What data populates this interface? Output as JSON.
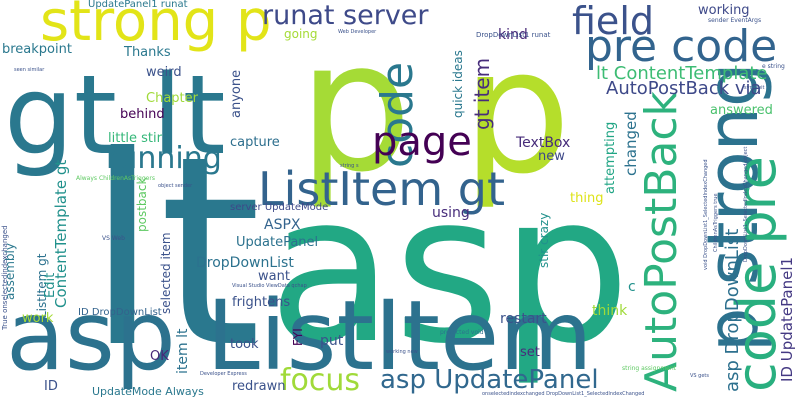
{
  "words": [
    {
      "text": "asp",
      "color": "#22a884"
    },
    {
      "text": "lt",
      "color": "#2a788e"
    },
    {
      "text": "p",
      "color": "#a5db36"
    },
    {
      "text": "p",
      "color": "#b5de2b"
    },
    {
      "text": "gt lt",
      "color": "#2a788e"
    },
    {
      "text": "asp ListItem",
      "color": "#2c728e"
    },
    {
      "text": "strong p",
      "color": "#e2e418"
    },
    {
      "text": "ListItem gt",
      "color": "#33638d"
    },
    {
      "text": "pre code",
      "color": "#32648e"
    },
    {
      "text": "p strong",
      "color": "#2c728e"
    },
    {
      "text": "code pre",
      "color": "#29af7f"
    },
    {
      "text": "AutoPostBack",
      "color": "#2db27d"
    },
    {
      "text": "code",
      "color": "#2a788e"
    },
    {
      "text": "page",
      "color": "#440154"
    },
    {
      "text": "field",
      "color": "#3b528b"
    },
    {
      "text": "running",
      "color": "#2a788e"
    },
    {
      "text": "runat server",
      "color": "#3e4a89"
    },
    {
      "text": "focus",
      "color": "#a0da39"
    },
    {
      "text": "asp UpdatePanel",
      "color": "#31688e"
    },
    {
      "text": "asp DropDownList",
      "color": "#2d708e"
    },
    {
      "text": "ID UpdatePanel1",
      "color": "#443983"
    },
    {
      "text": "AutoPostBack via",
      "color": "#3e4989"
    },
    {
      "text": "lt ContentTemplate",
      "color": "#3dbc74"
    },
    {
      "text": "gt item",
      "color": "#472d7b"
    },
    {
      "text": "kind",
      "color": "#482878"
    },
    {
      "text": "working",
      "color": "#3e4989"
    },
    {
      "text": "TextBox",
      "color": "#472c7a"
    },
    {
      "text": "answered",
      "color": "#4ac16d"
    },
    {
      "text": "ListItem gt",
      "color": "#2c728e"
    },
    {
      "text": "ContentTemplate gt",
      "color": "#21918c"
    },
    {
      "text": "breakpoint",
      "color": "#2a788e"
    },
    {
      "text": "Thanks",
      "color": "#2a788e"
    },
    {
      "text": "weird",
      "color": "#3b528b"
    },
    {
      "text": "Chapter",
      "color": "#a0da39"
    },
    {
      "text": "behind",
      "color": "#440154"
    },
    {
      "text": "little stir",
      "color": "#35b779"
    },
    {
      "text": "capture",
      "color": "#2e6f8e"
    },
    {
      "text": "anyone",
      "color": "#3b528b"
    },
    {
      "text": "going",
      "color": "#a5db36"
    },
    {
      "text": "quick ideas",
      "color": "#2a788e"
    },
    {
      "text": "changed",
      "color": "#2c728e"
    },
    {
      "text": "attempting",
      "color": "#21a585"
    },
    {
      "text": "new",
      "color": "#3e4989"
    },
    {
      "text": "thing",
      "color": "#dde318"
    },
    {
      "text": "using",
      "color": "#472d7b"
    },
    {
      "text": "ASPX",
      "color": "#33638d"
    },
    {
      "text": "UpdatePanel",
      "color": "#2c728e"
    },
    {
      "text": "DropDownList",
      "color": "#2c728e"
    },
    {
      "text": "want",
      "color": "#3b528b"
    },
    {
      "text": "frightens",
      "color": "#3b528b"
    },
    {
      "text": "selected item",
      "color": "#3b528b"
    },
    {
      "text": "postback",
      "color": "#5ec962"
    },
    {
      "text": "Edit",
      "color": "#21918c"
    },
    {
      "text": "assembly",
      "color": "#2a788e"
    },
    {
      "text": "work",
      "color": "#a5db36"
    },
    {
      "text": "ID DropDownList",
      "color": "#33638d"
    },
    {
      "text": "item lt",
      "color": "#2c728e"
    },
    {
      "text": "took",
      "color": "#3b528b"
    },
    {
      "text": "OK",
      "color": "#482878"
    },
    {
      "text": "FYI",
      "color": "#440154"
    },
    {
      "text": "put",
      "color": "#3b528b"
    },
    {
      "text": "restart",
      "color": "#3b528b"
    },
    {
      "text": "set",
      "color": "#472d7b"
    },
    {
      "text": "think",
      "color": "#a0da39"
    },
    {
      "text": "c",
      "color": "#21918c"
    },
    {
      "text": "stir crazy",
      "color": "#21918c"
    },
    {
      "text": "ID",
      "color": "#3b528b"
    },
    {
      "text": "UpdateMode Always",
      "color": "#2a788e"
    },
    {
      "text": "redrawn",
      "color": "#3b528b"
    },
    {
      "text": "server UpdateMode",
      "color": "#3e4989"
    },
    {
      "text": "UpdatePanel1 runat",
      "color": "#2a788e"
    },
    {
      "text": "DropDownList1 runat",
      "color": "#3b528b"
    },
    {
      "text": "Web Developer",
      "color": "#3b528b"
    },
    {
      "text": "Visual Studio ViewData qchap",
      "color": "#3b528b"
    },
    {
      "text": "Developer Express",
      "color": "#3b528b"
    },
    {
      "text": "Always ChildrenAsTriggers",
      "color": "#5ec962"
    },
    {
      "text": "True onselectedindexchanged",
      "color": "#3b528b"
    },
    {
      "text": "onselectedindexchanged DropDownList1_SelectedIndexChanged",
      "color": "#3b528b"
    },
    {
      "text": "protected void",
      "color": "#2c728e"
    },
    {
      "text": "object sender",
      "color": "#3b528b"
    },
    {
      "text": "sender EventArgs",
      "color": "#3b528b"
    },
    {
      "text": "e string",
      "color": "#3b528b"
    },
    {
      "text": "string assignment",
      "color": "#5ec962"
    },
    {
      "text": "seen similar",
      "color": "#3b528b"
    },
    {
      "text": "VS Web",
      "color": "#3b528b"
    },
    {
      "text": "VS gets",
      "color": "#3b528b"
    },
    {
      "text": "sync wit",
      "color": "#3b528b"
    },
    {
      "text": "working now",
      "color": "#3b528b"
    },
    {
      "text": "string s",
      "color": "#3b528b"
    },
    {
      "text": "ChildrenAsTriggers true",
      "color": "#3b528b"
    },
    {
      "text": "void DropDownList1_SelectedIndexChanged",
      "color": "#3b528b"
    },
    {
      "text": "DropDownList1_SelectedIndexChanged object",
      "color": "#3b528b"
    }
  ]
}
